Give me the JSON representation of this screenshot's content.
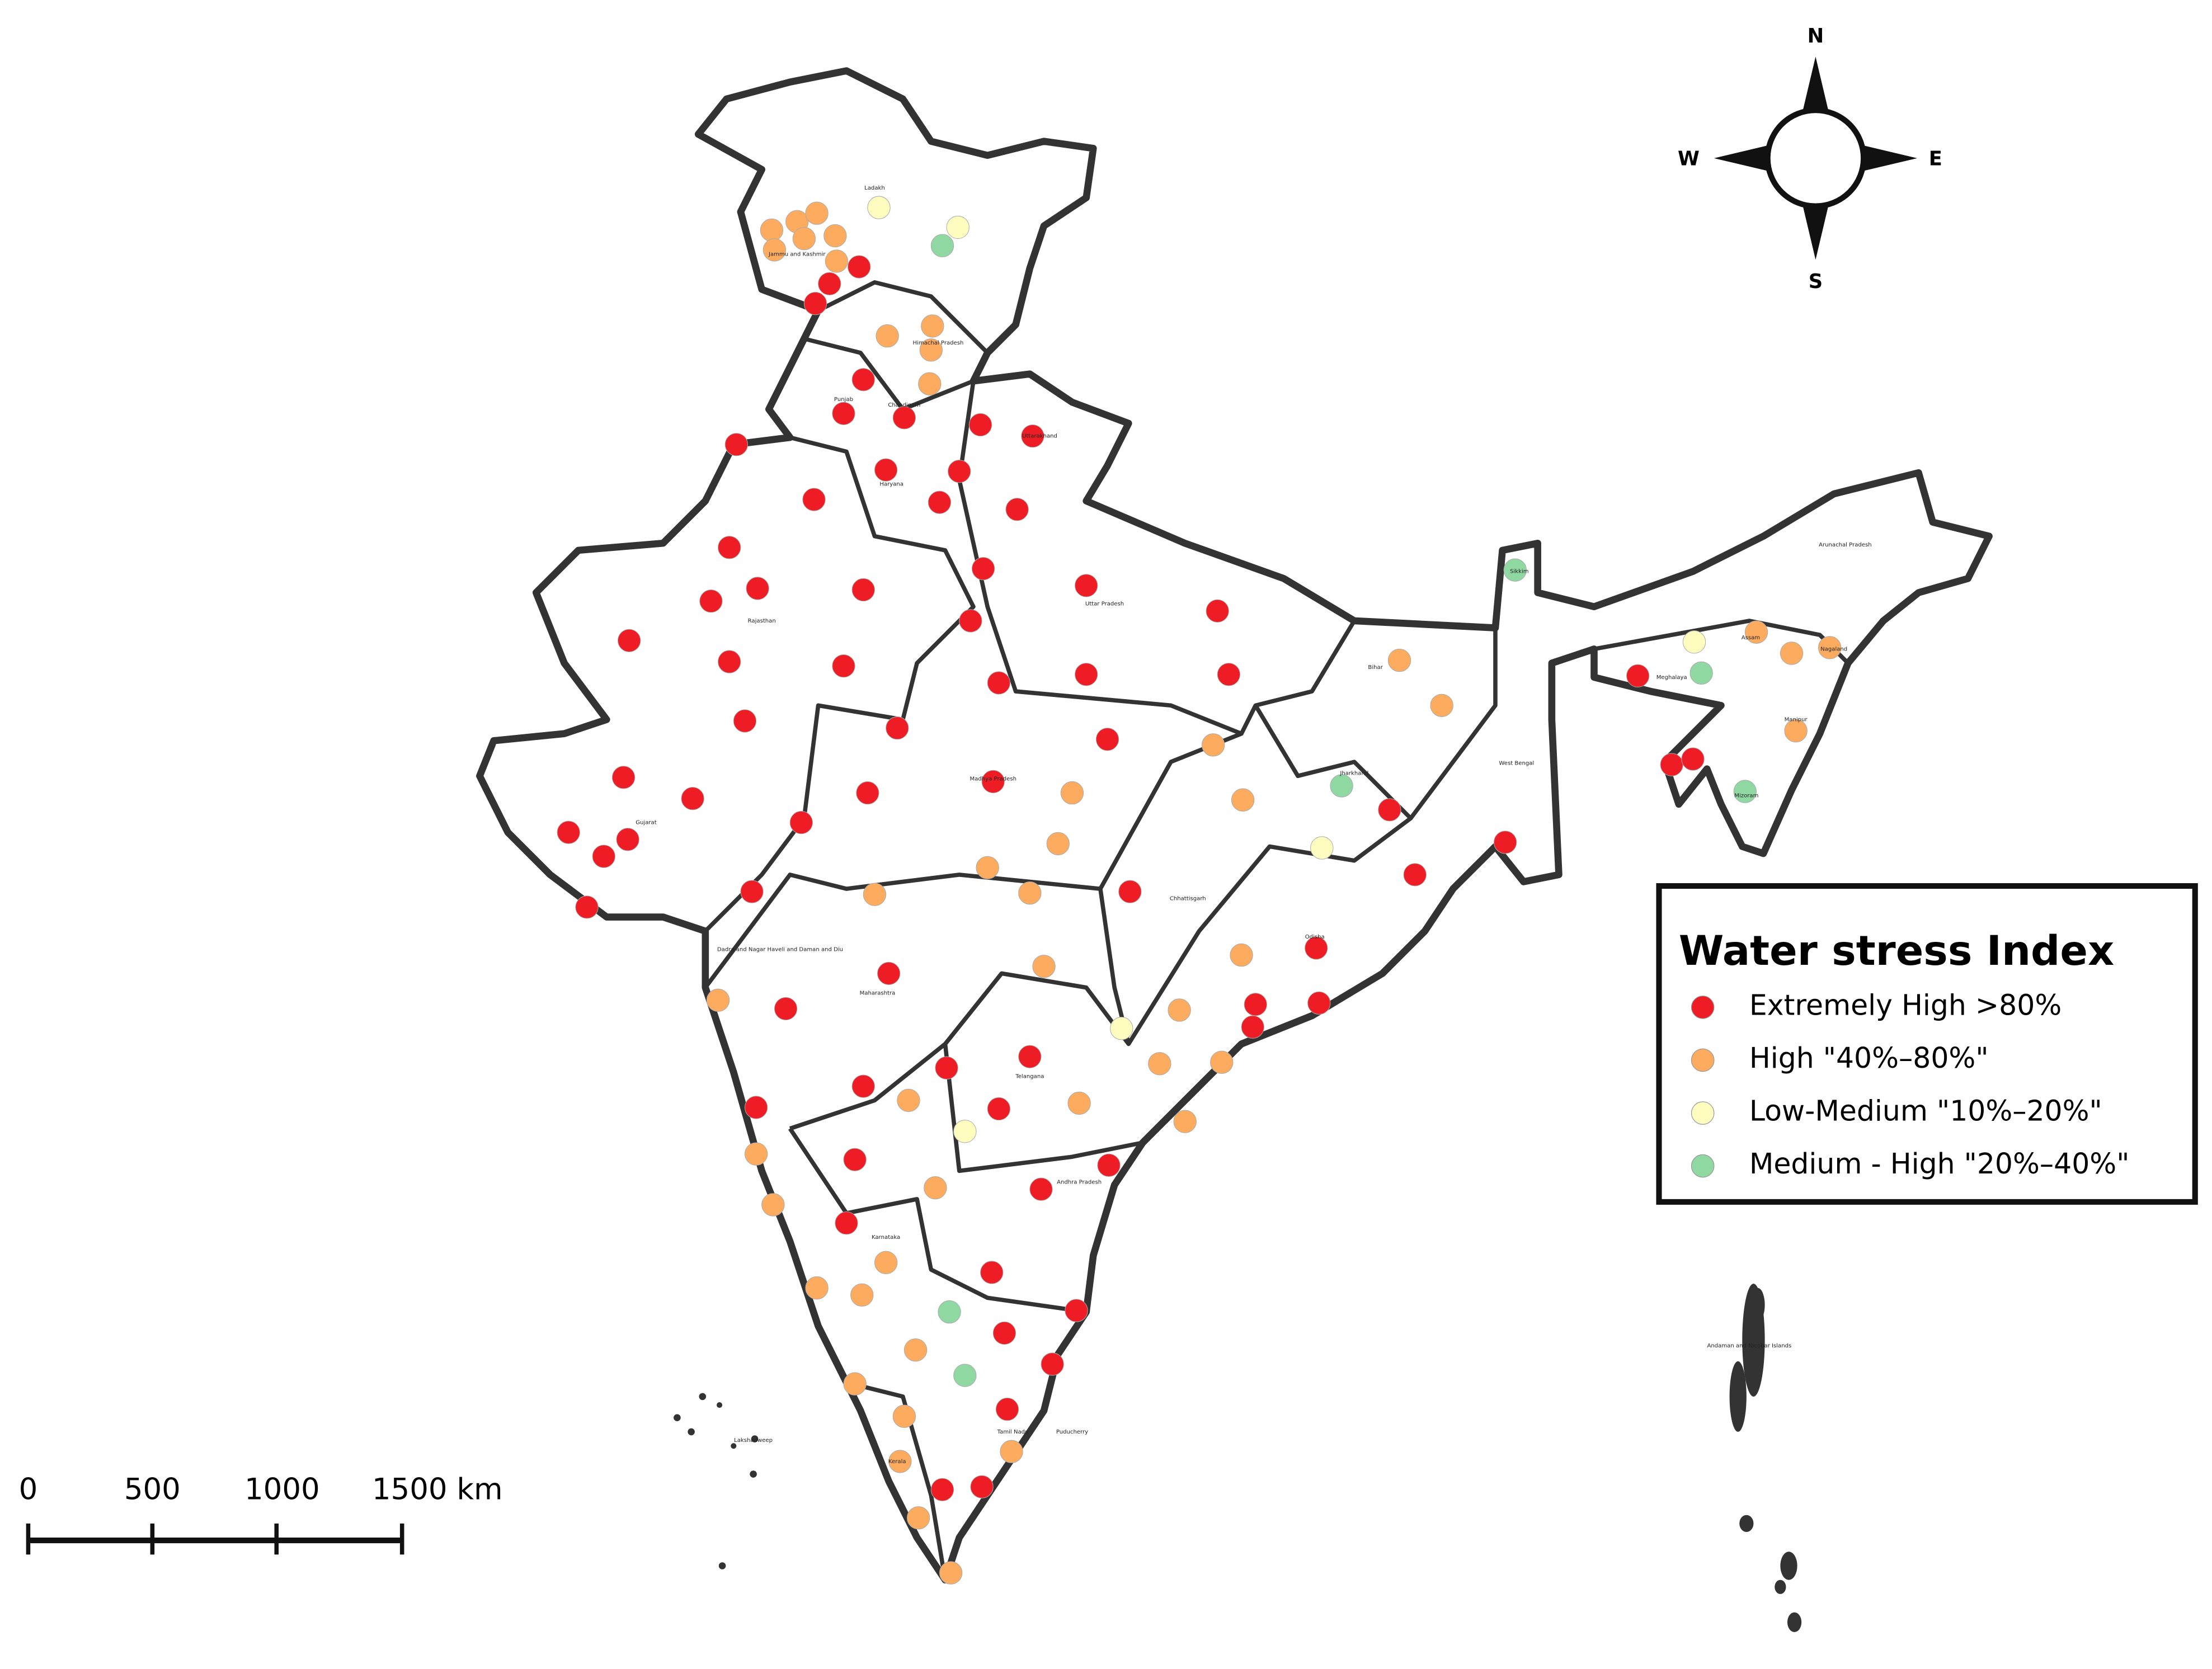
{
  "legend": {
    "title": "Water stress Index",
    "entries": [
      {
        "name": "Extremely High >80%",
        "color": "#ee1c25"
      },
      {
        "name": "High \"40%–80%\"",
        "color": "#fdab5f"
      },
      {
        "name": "Low-Medium \"10%–20%\"",
        "color": "#fefcbe"
      },
      {
        "name": "Medium - High \"20%–40%\"",
        "color": "#8fd8a2"
      }
    ]
  },
  "compass": {
    "north": "N",
    "east": "E",
    "south": "S",
    "west": "W"
  },
  "scale_bar": {
    "labels": [
      "0",
      "500",
      "1000",
      "1500 km"
    ]
  },
  "state_labels": [
    "Ladakh",
    "Jammu and Kashmir",
    "Himachal Pradesh",
    "Punjab",
    "Chandigarh",
    "Uttarakhand",
    "Haryana",
    "Rajasthan",
    "Uttar Pradesh",
    "Bihar",
    "Sikkim",
    "Arunachal Pradesh",
    "Assam",
    "Nagaland",
    "Meghalaya",
    "Manipur",
    "Mizoram",
    "West Bengal",
    "Jharkhand",
    "Gujarat",
    "Madhya Pradesh",
    "Chhattisgarh",
    "Odisha",
    "Dadra and Nagar Haveli and Daman and Diu",
    "Maharashtra",
    "Telangana",
    "Andhra Pradesh",
    "Karnataka",
    "Kerala",
    "Tamil Nadu",
    "Puducherry",
    "Lakshadweep",
    "Andaman and Nicobar Islands"
  ]
}
